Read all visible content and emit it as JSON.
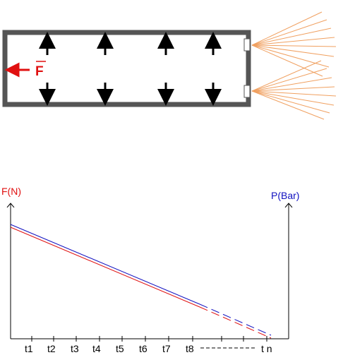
{
  "force_symbol": "F",
  "graph": {
    "left_axis_label": "F(N)",
    "right_axis_label": "P(Bar)",
    "time_ticks": [
      "t1",
      "t2",
      "t3",
      "t4",
      "t5",
      "t6",
      "t7",
      "t8"
    ],
    "time_last": "t n"
  },
  "colors": {
    "force": "#e01010",
    "pressure": "#1010c0",
    "jet": "#f0a060",
    "vessel": "#555555",
    "arrow": "#000000"
  }
}
